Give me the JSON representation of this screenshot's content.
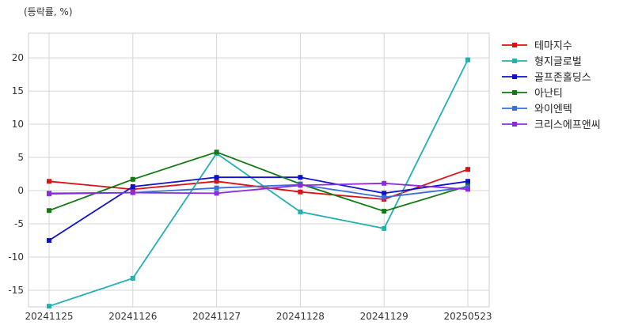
{
  "chart_data": {
    "type": "line",
    "unit_label": "(등락률, %)",
    "x": [
      "20241125",
      "20241126",
      "20241127",
      "20241128",
      "20241129",
      "20250523"
    ],
    "ylim": [
      -17.5,
      23.7
    ],
    "yticks": [
      -15,
      -10,
      -5,
      0,
      5,
      10,
      15,
      20
    ],
    "grid": true,
    "legend_position": "right",
    "series": [
      {
        "name": "테마지수",
        "color": "#dd1111",
        "values": [
          1.4,
          0.2,
          1.4,
          -0.2,
          -1.3,
          3.2
        ]
      },
      {
        "name": "형지글로벌",
        "color": "#22b0b0",
        "values": [
          -17.4,
          -13.2,
          5.6,
          -3.2,
          -5.7,
          19.7
        ]
      },
      {
        "name": "골프존홀딩스",
        "color": "#1111cc",
        "values": [
          -7.5,
          0.6,
          2.0,
          2.0,
          -0.4,
          1.4
        ]
      },
      {
        "name": "아난티",
        "color": "#117a11",
        "values": [
          -3.0,
          1.7,
          5.8,
          1.0,
          -3.1,
          0.7
        ]
      },
      {
        "name": "와이엔텍",
        "color": "#3a6fd8",
        "values": [
          -0.5,
          -0.3,
          0.4,
          0.9,
          -1.0,
          0.5
        ]
      },
      {
        "name": "크리스에프앤씨",
        "color": "#8a2be2",
        "values": [
          -0.4,
          -0.3,
          -0.4,
          0.8,
          1.1,
          0.2
        ]
      }
    ]
  }
}
